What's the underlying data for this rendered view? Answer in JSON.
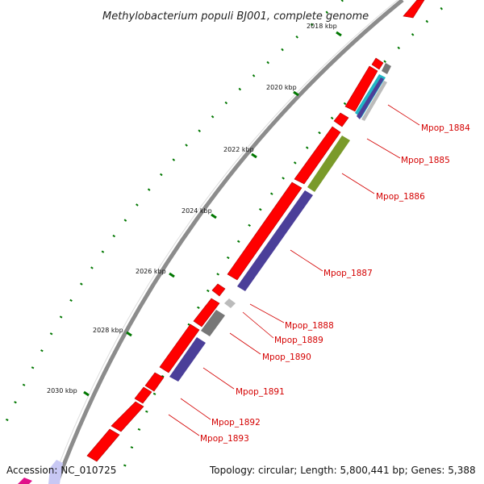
{
  "title": "Methylobacterium populi BJ001, complete genome",
  "footer": {
    "accession": "Accession: NC_010725",
    "summary": "Topology: circular; Length: 5,800,441 bp; Genes: 5,388"
  },
  "ticks": [
    "2018 kbp",
    "2020 kbp",
    "2022 kbp",
    "2024 kbp",
    "2026 kbp",
    "2028 kbp",
    "2030 kbp"
  ],
  "gene_labels": [
    "Mpop_1884",
    "Mpop_1885",
    "Mpop_1886",
    "Mpop_1887",
    "Mpop_1888",
    "Mpop_1889",
    "Mpop_1890",
    "Mpop_1891",
    "Mpop_1892",
    "Mpop_1893"
  ],
  "colors": {
    "forward_cds": "#ff0000",
    "backbone": "#8c8c8c",
    "tick": "#007700",
    "label": "#d40000",
    "blast_purple": "#4b3f99",
    "blast_olive": "#7a9a2a",
    "blast_gray": "#777777",
    "blast_light_gray": "#bbbbbb",
    "blast_teal": "#21b6c4"
  }
}
